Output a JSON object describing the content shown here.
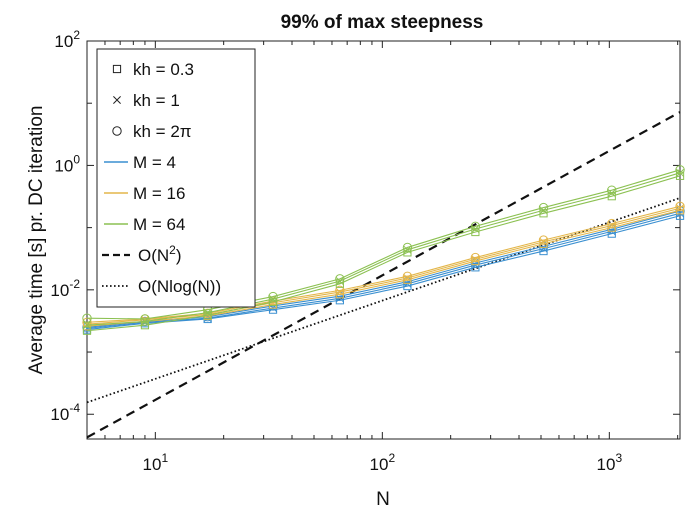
{
  "chart_data": {
    "type": "line",
    "title": "99% of max steepness",
    "xlabel": "N",
    "ylabel": "Average time [s] pr. DC iteration",
    "xscale": "log",
    "yscale": "log",
    "xlim": [
      5,
      2048
    ],
    "ylim": [
      4e-05,
      100
    ],
    "grid": false,
    "legend_position": "top-left",
    "x_ticks": [
      {
        "base": "10",
        "exp": "1"
      },
      {
        "base": "10",
        "exp": "2"
      },
      {
        "base": "10",
        "exp": "3"
      }
    ],
    "y_ticks": [
      {
        "base": "10",
        "exp": "-4"
      },
      {
        "base": "10",
        "exp": "-2"
      },
      {
        "base": "10",
        "exp": "0"
      },
      {
        "base": "10",
        "exp": "2"
      }
    ],
    "x": [
      5,
      9,
      17,
      33,
      65,
      129,
      257,
      513,
      1025,
      2049
    ],
    "series": [
      {
        "name": "M = 4",
        "color": "#3a8fd0",
        "kh": "0.3",
        "marker": "square",
        "values": [
          0.0023,
          0.0029,
          0.0034,
          0.0048,
          0.0068,
          0.0115,
          0.023,
          0.042,
          0.08,
          0.155
        ]
      },
      {
        "name": "M = 4",
        "color": "#3a8fd0",
        "kh": "1",
        "marker": "x",
        "values": [
          0.0024,
          0.003,
          0.0035,
          0.0051,
          0.0073,
          0.0125,
          0.025,
          0.046,
          0.087,
          0.17
        ]
      },
      {
        "name": "M = 4",
        "color": "#3a8fd0",
        "kh": "2π",
        "marker": "circle",
        "values": [
          0.0025,
          0.0031,
          0.0037,
          0.0055,
          0.0079,
          0.0135,
          0.027,
          0.05,
          0.094,
          0.185
        ]
      },
      {
        "name": "M = 16",
        "color": "#e3b64a",
        "kh": "0.3",
        "marker": "square",
        "values": [
          0.0026,
          0.0031,
          0.0038,
          0.0058,
          0.0085,
          0.0145,
          0.029,
          0.055,
          0.1,
          0.19
        ]
      },
      {
        "name": "M = 16",
        "color": "#e3b64a",
        "kh": "1",
        "marker": "x",
        "values": [
          0.0028,
          0.0033,
          0.004,
          0.0062,
          0.0092,
          0.0155,
          0.031,
          0.059,
          0.108,
          0.205
        ]
      },
      {
        "name": "M = 16",
        "color": "#e3b64a",
        "kh": "2π",
        "marker": "circle",
        "values": [
          0.003,
          0.0034,
          0.0042,
          0.0066,
          0.0098,
          0.0165,
          0.033,
          0.063,
          0.116,
          0.22
        ]
      },
      {
        "name": "M = 64",
        "color": "#8cc152",
        "kh": "0.3",
        "marker": "square",
        "values": [
          0.0022,
          0.0027,
          0.0039,
          0.0064,
          0.0125,
          0.04,
          0.085,
          0.17,
          0.32,
          0.68
        ]
      },
      {
        "name": "M = 64",
        "color": "#8cc152",
        "kh": "1",
        "marker": "x",
        "values": [
          0.0027,
          0.0031,
          0.0043,
          0.0071,
          0.0138,
          0.044,
          0.095,
          0.19,
          0.36,
          0.76
        ]
      },
      {
        "name": "M = 64",
        "color": "#8cc152",
        "kh": "2π",
        "marker": "circle",
        "values": [
          0.0035,
          0.0034,
          0.0048,
          0.0078,
          0.015,
          0.048,
          0.105,
          0.21,
          0.4,
          0.85
        ]
      }
    ],
    "reference_lines": [
      {
        "name": "O(N^2)",
        "style": "dashed",
        "x": [
          5,
          2049
        ],
        "values": [
          4.25e-05,
          7.2
        ]
      },
      {
        "name": "O(Nlog(N))",
        "style": "dotted",
        "x": [
          5,
          2049
        ],
        "values": [
          0.000155,
          0.3
        ]
      }
    ],
    "legend": {
      "markers": [
        {
          "marker": "square",
          "label": "kh = 0.3"
        },
        {
          "marker": "x",
          "label": "kh = 1"
        },
        {
          "marker": "circle",
          "label": "kh = 2π"
        }
      ],
      "lines": [
        {
          "color": "#3a8fd0",
          "label": "M = 4"
        },
        {
          "color": "#e3b64a",
          "label": "M = 16"
        },
        {
          "color": "#8cc152",
          "label": "M = 64"
        }
      ],
      "refs": [
        {
          "style": "dashed",
          "label_main": "O(N",
          "label_sup": "2",
          "label_tail": ")"
        },
        {
          "style": "dotted",
          "label_main": "O(Nlog(N))",
          "label_sup": "",
          "label_tail": ""
        }
      ]
    }
  }
}
